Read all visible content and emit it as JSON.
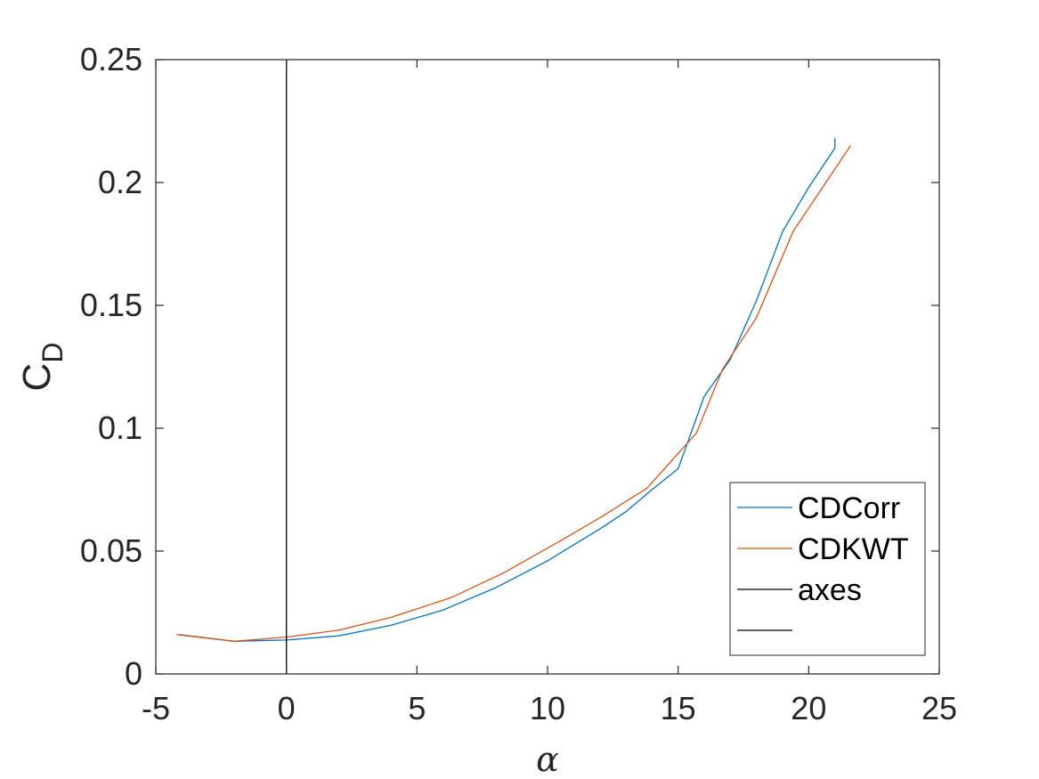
{
  "chart_data": {
    "type": "line",
    "xlabel": "α",
    "ylabel": "C",
    "ylabel_subscript": "D",
    "xlim": [
      -5,
      25
    ],
    "ylim": [
      0,
      0.25
    ],
    "xticks": [
      -5,
      0,
      5,
      10,
      15,
      20,
      25
    ],
    "yticks": [
      0,
      0.05,
      0.1,
      0.15,
      0.2,
      0.25
    ],
    "xtick_labels": [
      "-5",
      "0",
      "5",
      "10",
      "15",
      "20",
      "25"
    ],
    "ytick_labels": [
      "0",
      "0.05",
      "0.1",
      "0.15",
      "0.2",
      "0.25"
    ],
    "grid": false,
    "legend_position": "bottom-right",
    "series": [
      {
        "name": "CDCorr",
        "color": "#0072BD",
        "x": [
          -4.1,
          -2.0,
          0.0,
          2.0,
          4.0,
          6.0,
          8.0,
          10.0,
          11.0,
          12.0,
          13.0,
          14.0,
          15.0,
          16.0,
          17.0,
          18.0,
          19.0,
          20.0,
          21.0,
          21.0
        ],
        "y": [
          0.016,
          0.0133,
          0.0138,
          0.0155,
          0.0198,
          0.026,
          0.035,
          0.046,
          0.0525,
          0.059,
          0.066,
          0.075,
          0.0835,
          0.113,
          0.128,
          0.152,
          0.18,
          0.198,
          0.214,
          0.218
        ]
      },
      {
        "name": "CDKWT",
        "color": "#D95319",
        "x": [
          -4.2,
          -2.0,
          0.0,
          2.0,
          4.0,
          6.3,
          8.3,
          10.3,
          12.0,
          13.8,
          15.7,
          16.7,
          18.0,
          19.4,
          21.6
        ],
        "y": [
          0.016,
          0.0133,
          0.015,
          0.0178,
          0.023,
          0.031,
          0.041,
          0.053,
          0.0635,
          0.0755,
          0.098,
          0.124,
          0.145,
          0.18,
          0.215
        ]
      },
      {
        "name": "axes",
        "color": "#000000",
        "x": [
          0,
          0
        ],
        "y": [
          0,
          0.25
        ]
      },
      {
        "name": "",
        "color": "#000000",
        "x": [],
        "y": []
      }
    ]
  }
}
